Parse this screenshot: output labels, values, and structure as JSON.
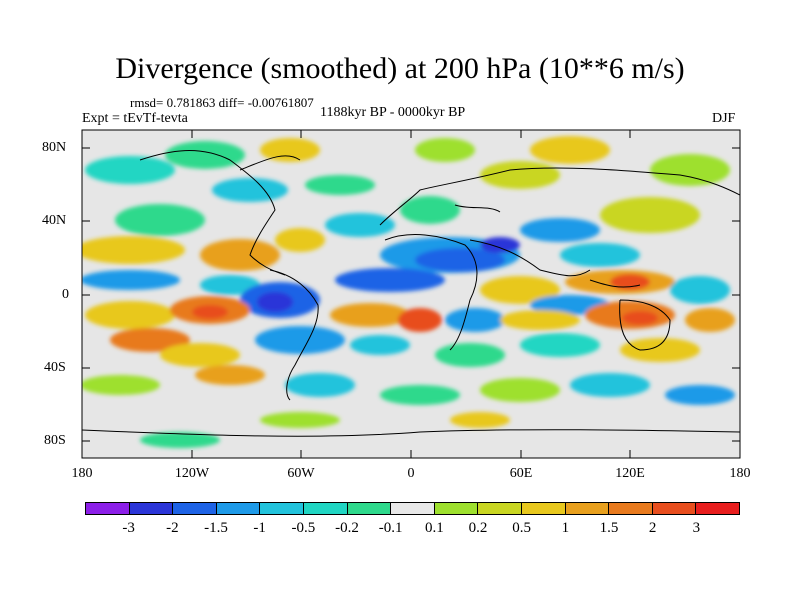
{
  "title": "Divergence (smoothed) at 200 hPa (10**6 m/s)",
  "stats": "rmsd= 0.781863 diff= -0.00761807",
  "experiment": "Expt = tEvTf-tevta",
  "period": "1188kyr BP - 0000kyr BP",
  "season": "DJF",
  "y_ticks": [
    "80N",
    "40N",
    "0",
    "40S",
    "80S"
  ],
  "x_ticks": [
    "180",
    "120W",
    "60W",
    "0",
    "60E",
    "120E",
    "180"
  ],
  "colorbar": {
    "colors": [
      "#8c1fe8",
      "#2b35d8",
      "#1e63e6",
      "#1e9ae8",
      "#22c3dc",
      "#20d6c3",
      "#2ed98c",
      "#e8e8e8",
      "#9ee02e",
      "#c9d622",
      "#e8c81e",
      "#e8a01e",
      "#e87a1e",
      "#e84e1e",
      "#e81e1e"
    ],
    "labels": [
      "-3",
      "-2",
      "-1.5",
      "-1",
      "-0.5",
      "-0.2",
      "-0.1",
      "0.1",
      "0.2",
      "0.5",
      "1",
      "1.5",
      "2",
      "3"
    ]
  }
}
